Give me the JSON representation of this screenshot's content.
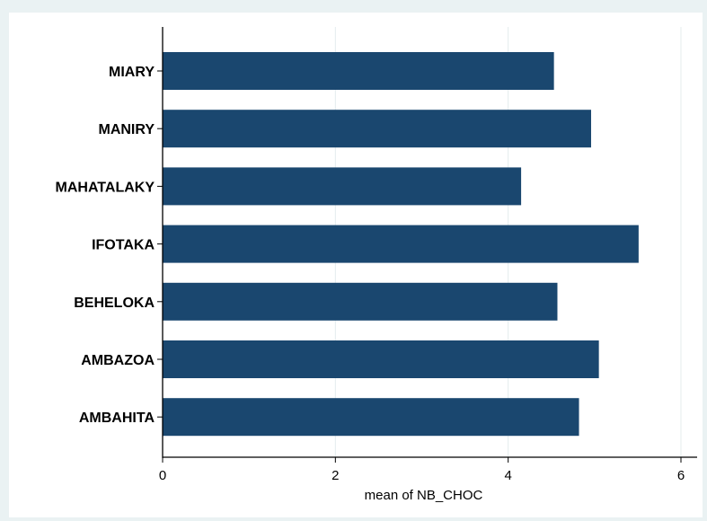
{
  "chart_data": {
    "type": "bar",
    "orientation": "horizontal",
    "categories": [
      "MIARY",
      "MANIRY",
      "MAHATALAKY",
      "IFOTAKA",
      "BEHELOKA",
      "AMBAZOA",
      "AMBAHITA"
    ],
    "values": [
      4.53,
      4.96,
      4.15,
      5.51,
      4.57,
      5.05,
      4.82
    ],
    "xlabel": "mean of NB_CHOC",
    "xlim": [
      0,
      6
    ],
    "xticks": [
      0,
      2,
      4,
      6
    ],
    "grid": true,
    "bar_color": "#1a476f"
  }
}
